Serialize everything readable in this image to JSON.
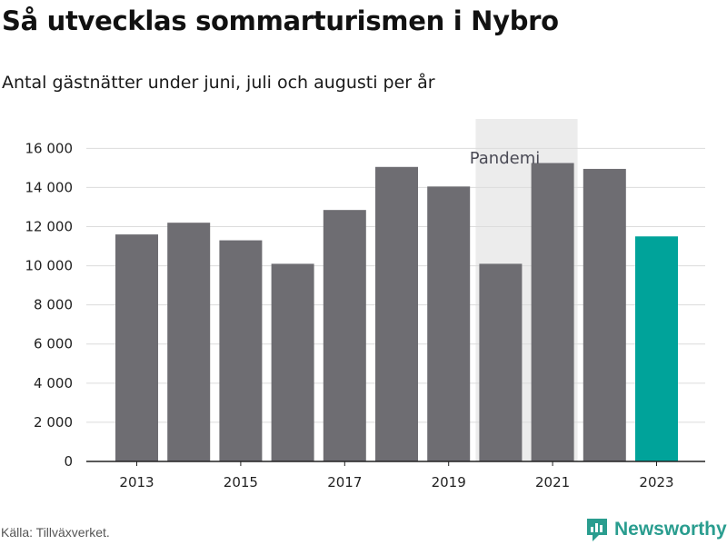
{
  "header": {
    "title": "Så utvecklas sommarturismen i Nybro",
    "subtitle": "Antal gästnätter under juni, juli och augusti per år"
  },
  "footer": {
    "source": "Källa: Tillväxverket.",
    "brand": "Newsworthy",
    "brand_icon": "newsworthy-logo-icon"
  },
  "colors": {
    "bar": "#6e6d72",
    "highlight": "#00a39a",
    "shade": "#ececec",
    "grid": "#dcdcdc",
    "brand": "#2a9d8f"
  },
  "chart_data": {
    "type": "bar",
    "categories": [
      "2013",
      "2014",
      "2015",
      "2016",
      "2017",
      "2018",
      "2019",
      "2020",
      "2021",
      "2022",
      "2023"
    ],
    "values": [
      11600,
      12200,
      11300,
      10100,
      12850,
      15050,
      14050,
      10100,
      15250,
      14950,
      11500
    ],
    "highlight_category": "2023",
    "x_tick_labels": [
      "2013",
      "2015",
      "2017",
      "2019",
      "2021",
      "2023"
    ],
    "y_ticks": [
      0,
      2000,
      4000,
      6000,
      8000,
      10000,
      12000,
      14000,
      16000
    ],
    "y_tick_labels": [
      "0",
      "2 000",
      "4 000",
      "6 000",
      "8 000",
      "10 000",
      "12 000",
      "14 000",
      "16 000"
    ],
    "ylim": [
      0,
      17500
    ],
    "grid": true,
    "annotation": {
      "label": "Pandemi",
      "range": [
        "2020",
        "2021"
      ]
    }
  }
}
